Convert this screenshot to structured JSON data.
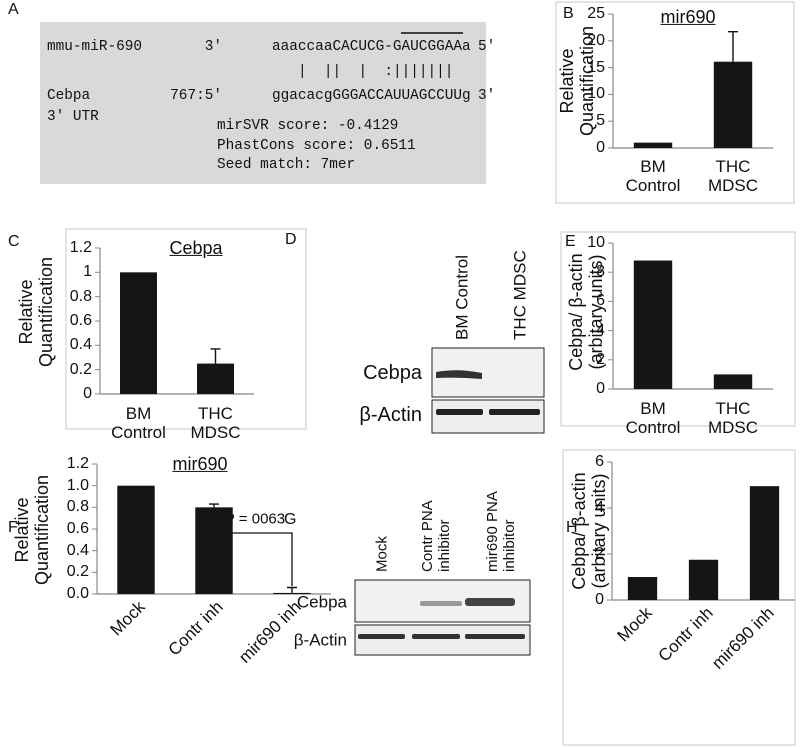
{
  "panels": {
    "A": {
      "label": "A",
      "rows": [
        {
          "name": "mmu-miR-690",
          "end": "3'",
          "seq": "aaaccaaCACUCG-GAUCGGAAa",
          "tail": "5'"
        },
        {
          "name": "Cebpa",
          "end": "767:5'",
          "seq": "ggacacgGGGACCAUUAGCCUUg",
          "tail": "3'"
        }
      ],
      "pairing": "|  ||  |  :|||||||",
      "note": "3' UTR",
      "scores": [
        "mirSVR score: -0.4129",
        "PhastCons score: 0.6511",
        "Seed match: 7mer"
      ]
    },
    "D": {
      "label": "D",
      "columns": [
        "BM Control",
        "THC MDSC"
      ],
      "rows": [
        "Cebpa",
        "β-Actin"
      ]
    },
    "G": {
      "label": "G",
      "columns": [
        "Mock",
        "Contr PNA inhibitor",
        "mir690 PNA inhibitor"
      ],
      "rows": [
        "Cebpa",
        "β-Actin"
      ]
    }
  },
  "chart_data": [
    {
      "type": "bar",
      "panel": "B",
      "title": "mir690",
      "y_label": "Relative Quantification",
      "categories": [
        "BM Control",
        "THC MDSC"
      ],
      "values": [
        1,
        16.1
      ],
      "errors": [
        null,
        5.6
      ],
      "color": "#151515",
      "ylim": [
        0,
        25
      ],
      "yticks": [
        0,
        5,
        10,
        15,
        20,
        25
      ]
    },
    {
      "type": "bar",
      "panel": "C",
      "title": "Cebpa",
      "y_label": "Relative Quantification",
      "categories": [
        "BM Control",
        "THC MDSC"
      ],
      "values": [
        1,
        0.25
      ],
      "errors": [
        null,
        0.12
      ],
      "color": "#151515",
      "ylim": [
        0,
        1.2
      ],
      "yticks": [
        0,
        0.2,
        0.4,
        0.6,
        0.8,
        1,
        1.2
      ]
    },
    {
      "type": "bar",
      "panel": "E",
      "y_label": "Cebpa/ β-actin (arbitary units)",
      "categories": [
        "BM Control",
        "THC MDSC"
      ],
      "values": [
        8.8,
        1
      ],
      "color": "#151515",
      "ylim": [
        0,
        10
      ],
      "yticks": [
        0,
        2,
        4,
        6,
        8,
        10
      ]
    },
    {
      "type": "bar",
      "panel": "F",
      "title": "mir690",
      "y_label": "Relative Quantification",
      "categories": [
        "Mock",
        "Contr inh",
        "mir690 inh"
      ],
      "values": [
        1,
        0.8,
        0.01
      ],
      "errors": [
        null,
        0.03,
        0.05
      ],
      "color": "#151515",
      "annotation": "P = 0063",
      "ylim": [
        0,
        1.2
      ],
      "yticks": [
        {
          "value": 0,
          "label": "0.0"
        },
        0.2,
        0.4,
        0.6,
        0.8,
        {
          "value": 1,
          "label": "1.0"
        },
        1.2
      ]
    },
    {
      "type": "bar",
      "panel": "H",
      "y_label": "Cebpa/ β-actin (arbitary units)",
      "categories": [
        "Mock",
        "Contr inh",
        "mir690 inh"
      ],
      "values": [
        1,
        1.75,
        4.95
      ],
      "color": "#151515",
      "ylim": [
        0,
        6
      ],
      "yticks": [
        0,
        2,
        4,
        6
      ]
    }
  ]
}
